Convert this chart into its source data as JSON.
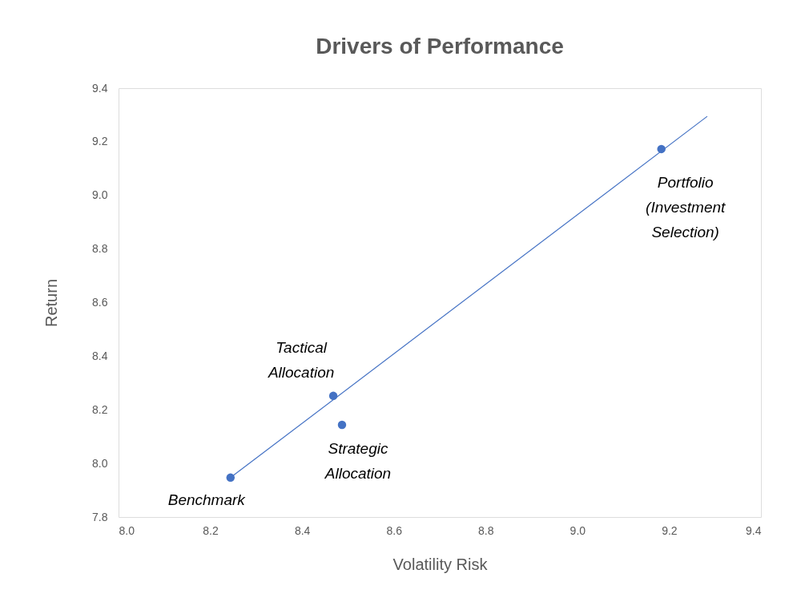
{
  "chart_data": {
    "type": "scatter",
    "title": "Drivers of Performance",
    "xlabel": "Volatility Risk",
    "ylabel": "Return",
    "series": [
      {
        "color": "#4472c4",
        "marker": "circle",
        "x": [
          8.244,
          8.468,
          8.487,
          9.183
        ],
        "values": [
          7.947,
          8.252,
          8.144,
          9.173
        ]
      },
      {
        "type": "line",
        "color": "#4472c4",
        "line_style": "solid",
        "marker": "none",
        "x": [
          8.244,
          9.283
        ],
        "values": [
          7.947,
          9.295
        ]
      }
    ],
    "xlim": [
      8.0,
      9.4
    ],
    "xticks": [
      {
        "value": 8,
        "label": "8.0"
      },
      8.2,
      8.4,
      8.6,
      8.8,
      {
        "value": 9,
        "label": "9.0"
      },
      9.2,
      9.4
    ],
    "ylim": [
      7.8,
      9.4
    ],
    "yticks": [
      7.8,
      {
        "value": 8,
        "label": "8.0"
      },
      8.2,
      8.4,
      8.6,
      8.8,
      {
        "value": 9,
        "label": "9.0"
      },
      9.2,
      9.4
    ],
    "grid": false,
    "annotations": [
      {
        "text": "Benchmark",
        "x": 8.244,
        "y": 7.947
      },
      {
        "text": "Tactical\nAllocation",
        "x": 8.468,
        "y": 8.252
      },
      {
        "text": "Strategic\nAllocation",
        "x": 8.487,
        "y": 8.144
      },
      {
        "text": "Portfolio\n(Investment\nSelection)",
        "x": 9.183,
        "y": 9.173
      }
    ]
  }
}
